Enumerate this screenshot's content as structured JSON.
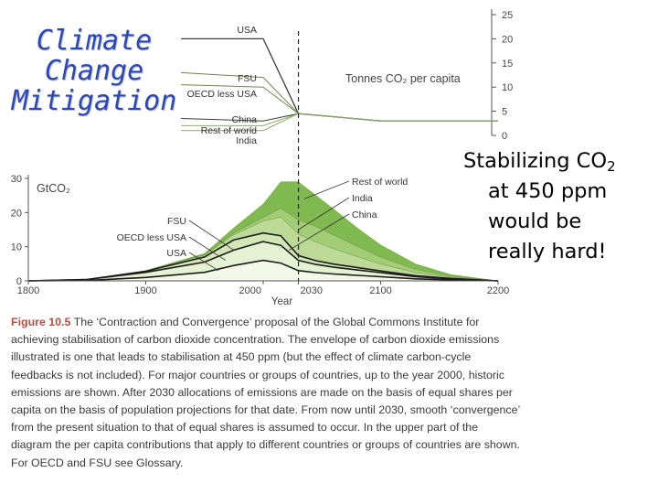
{
  "slide": {
    "title_lines": [
      "Climate",
      "Change",
      "Mitigation"
    ],
    "callout": {
      "line1_prefix": "Stabilizing CO",
      "line1_sub": "2",
      "lines": [
        "at 450 ppm",
        "would be",
        "really hard!"
      ]
    }
  },
  "colors": {
    "title": "#2d47b8",
    "caption_label": "#c44a3c",
    "envelope_fill": "#7fb94f",
    "envelope_light": "#dcebc3"
  },
  "figure": {
    "caption_label": "Figure 10.5",
    "caption_text": "The ‘Contraction and Convergence’ proposal of the Global Commons Institute for achieving stabilisation of carbon dioxide concentration. The envelope of carbon dioxide emissions illustrated is one that leads to stabilisation at 450 ppm (but the effect of climate carbon-cycle feedbacks is not included). For major countries or groups of countries, up to the year 2000, historic emissions are shown. After 2030 allocations of emissions are made on the basis of equal shares per capita on the basis of population projections for that date. From now until 2030, smooth ‘convergence’ from the present situation to that of equal shares is assumed to occur. In the upper part of the diagram the per capita contributions that apply to different countries or groups of countries are shown. For OECD and FSU see Glossary.",
    "chart_data": [
      {
        "type": "line",
        "title": "",
        "ylabel": "Tonnes CO₂ per capita",
        "ylim": [
          0,
          25
        ],
        "yticks": [
          "0",
          "5",
          "10",
          "15",
          "20",
          "25"
        ],
        "xlim": [
          1800,
          2200
        ],
        "grid": false,
        "series": [
          {
            "name": "USA",
            "x": [
              1930,
              2000,
              2030,
              2100,
              2200
            ],
            "values": [
              20,
              20,
              4.5,
              3,
              3
            ]
          },
          {
            "name": "FSU",
            "x": [
              1930,
              2000,
              2030,
              2100,
              2200
            ],
            "values": [
              13,
              12,
              4.5,
              3,
              3
            ]
          },
          {
            "name": "OECD less USA",
            "x": [
              1930,
              2000,
              2030,
              2100,
              2200
            ],
            "values": [
              10.5,
              10,
              4.5,
              3,
              3
            ]
          },
          {
            "name": "China",
            "x": [
              1930,
              2000,
              2030,
              2100,
              2200
            ],
            "values": [
              3.5,
              3,
              4.5,
              3,
              3
            ]
          },
          {
            "name": "Rest of world",
            "x": [
              1930,
              2000,
              2030,
              2100,
              2200
            ],
            "values": [
              2,
              2,
              4.5,
              3,
              3
            ]
          },
          {
            "name": "India",
            "x": [
              1930,
              2000,
              2030,
              2100,
              2200
            ],
            "values": [
              1,
              1,
              4.5,
              3,
              3
            ]
          }
        ]
      },
      {
        "type": "area",
        "title": "",
        "ylabel": "GtCO₂",
        "xlabel": "Year",
        "xlim": [
          1800,
          2200
        ],
        "ylim": [
          0,
          30
        ],
        "xticks": [
          "1800",
          "1900",
          "2000",
          "2030",
          "2100",
          "2200"
        ],
        "yticks": [
          "0",
          "10",
          "20",
          "30"
        ],
        "grid": false,
        "x": [
          1800,
          1850,
          1900,
          1950,
          1975,
          2000,
          2015,
          2030,
          2045,
          2060,
          2080,
          2100,
          2130,
          2160,
          2200
        ],
        "series": [
          {
            "name": "USA",
            "values": [
              0,
              0.1,
              1,
              2.5,
              4.5,
              6,
              5.2,
              3,
              2.4,
              2,
              1.6,
              1.2,
              0.6,
              0.3,
              0
            ]
          },
          {
            "name": "OECD less USA",
            "values": [
              0,
              0.3,
              1.5,
              3,
              4.5,
              5.5,
              5.2,
              3,
              2.4,
              2,
              1.6,
              1.2,
              0.6,
              0.3,
              0
            ]
          },
          {
            "name": "FSU",
            "values": [
              0,
              0,
              0.3,
              1.5,
              3,
              2.5,
              2.8,
              1.4,
              1.1,
              0.9,
              0.7,
              0.5,
              0.3,
              0.1,
              0
            ]
          },
          {
            "name": "China",
            "values": [
              0,
              0,
              0.1,
              0.5,
              1.5,
              3.5,
              5.5,
              6.2,
              5.5,
              4.5,
              3.2,
              2,
              0.9,
              0.3,
              0
            ]
          },
          {
            "name": "India",
            "values": [
              0,
              0,
              0,
              0.1,
              0.5,
              1,
              2.5,
              4.2,
              4.5,
              4,
              3,
              2,
              0.9,
              0.3,
              0
            ]
          },
          {
            "name": "Rest of world",
            "values": [
              0,
              0,
              0.1,
              0.4,
              1.5,
              4,
              7.8,
              11.2,
              9.1,
              7.6,
              5.4,
              3.6,
              1.6,
              0.5,
              0
            ]
          }
        ]
      }
    ]
  }
}
